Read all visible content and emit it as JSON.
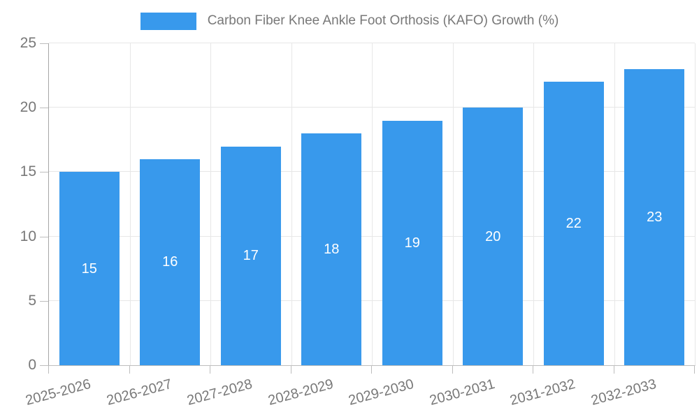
{
  "chart_data": {
    "type": "bar",
    "title": "Carbon Fiber Knee Ankle Foot Orthosis (KAFO) Growth (%)",
    "categories": [
      "2025-2026",
      "2026-2027",
      "2027-2028",
      "2028-2029",
      "2029-2030",
      "2030-2031",
      "2031-2032",
      "2032-2033"
    ],
    "values": [
      15,
      16,
      17,
      18,
      19,
      20,
      22,
      23
    ],
    "value_labels": [
      "15",
      "16",
      "17",
      "18",
      "19",
      "20",
      "22",
      "23"
    ],
    "xlabel": "",
    "ylabel": "",
    "ylim": [
      0,
      25
    ],
    "yticks": [
      0,
      5,
      10,
      15,
      20,
      25
    ],
    "grid": true,
    "legend_position": "top",
    "bar_color": "#3899ec",
    "value_label_color": "#ffffff",
    "axis_text_color": "#787878",
    "gridline_color": "#e7e7e7"
  },
  "legend": {
    "label": "Carbon Fiber Knee Ankle Foot Orthosis (KAFO) Growth (%)"
  }
}
